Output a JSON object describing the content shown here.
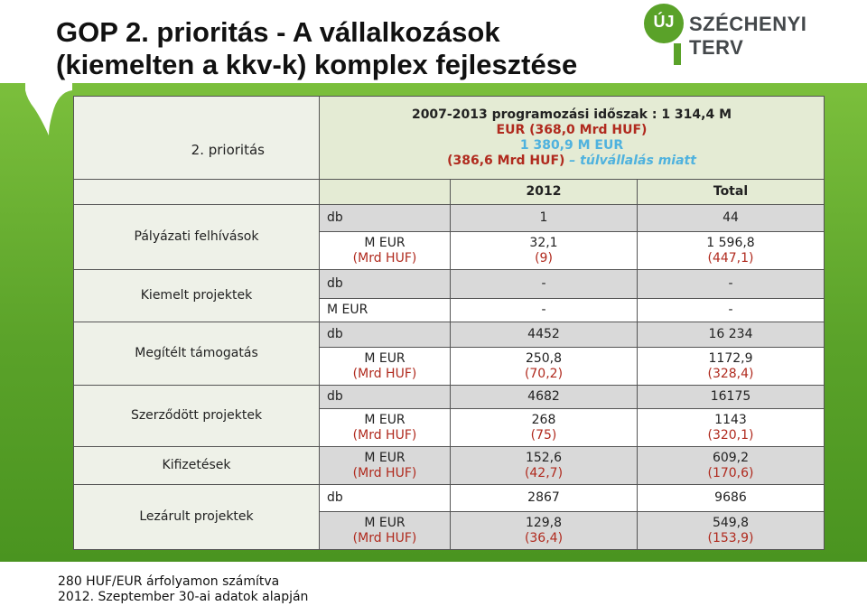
{
  "slide": {
    "title_line1": "GOP 2. prioritás - A vállalkozások",
    "title_line2": "(kiemelten a kkv-k) komplex fejlesztése",
    "logo_badge": "ÚJ",
    "logo_text": "SZÉCHENYI TERV"
  },
  "table": {
    "corner_label": "2. prioritás",
    "period_line1": "2007-2013 programozási időszak : 1 314,4 M",
    "period_line2": "EUR  (368,0 Mrd HUF)",
    "period_line3": "1 380,9 M EUR",
    "period_line4a": "(386,6 Mrd HUF)",
    "period_line4b": " – túlvállalás miatt",
    "col_2012": "2012",
    "col_total": "Total",
    "groups": [
      {
        "label": "Pályázati felhívások",
        "rows": [
          {
            "unit": "db",
            "unit2": "",
            "v1": "1",
            "v1b": "",
            "v2": "44",
            "v2b": ""
          },
          {
            "unit": "M EUR",
            "unit2": "(Mrd HUF)",
            "v1": "32,1",
            "v1b": "(9)",
            "v2": "1 596,8",
            "v2b": "(447,1)"
          }
        ]
      },
      {
        "label": "Kiemelt projektek",
        "rows": [
          {
            "unit": "db",
            "unit2": "",
            "v1": "-",
            "v1b": "",
            "v2": "-",
            "v2b": ""
          },
          {
            "unit": "M EUR",
            "unit2": "",
            "v1": "-",
            "v1b": "",
            "v2": "-",
            "v2b": ""
          }
        ]
      },
      {
        "label": "Megítélt támogatás",
        "rows": [
          {
            "unit": "db",
            "unit2": "",
            "v1": "4452",
            "v1b": "",
            "v2": "16 234",
            "v2b": ""
          },
          {
            "unit": "M EUR",
            "unit2": "(Mrd HUF)",
            "v1": "250,8",
            "v1b": "(70,2)",
            "v2": "1172,9",
            "v2b": "(328,4)"
          }
        ]
      },
      {
        "label": "Szerződött projektek",
        "rows": [
          {
            "unit": "db",
            "unit2": "",
            "v1": "4682",
            "v1b": "",
            "v2": "16175",
            "v2b": ""
          },
          {
            "unit": "M EUR",
            "unit2": "(Mrd HUF)",
            "v1": "268",
            "v1b": "(75)",
            "v2": "1143",
            "v2b": "(320,1)"
          }
        ]
      },
      {
        "label": "Kifizetések",
        "rows": [
          {
            "unit": "M EUR",
            "unit2": "(Mrd HUF)",
            "v1": "152,6",
            "v1b": "(42,7)",
            "v2": "609,2",
            "v2b": "(170,6)"
          }
        ]
      },
      {
        "label": "Lezárult projektek",
        "rows": [
          {
            "unit": "db",
            "unit2": "",
            "v1": "2867",
            "v1b": "",
            "v2": "9686",
            "v2b": ""
          },
          {
            "unit": "M EUR",
            "unit2": "(Mrd HUF)",
            "v1": "129,8",
            "v1b": "(36,4)",
            "v2": "549,8",
            "v2b": "(153,9)"
          }
        ]
      }
    ]
  },
  "footer": {
    "line1": "280 HUF/EUR  árfolyamon számítva",
    "line2": "2012. Szeptember 30-ai adatok alapján"
  }
}
